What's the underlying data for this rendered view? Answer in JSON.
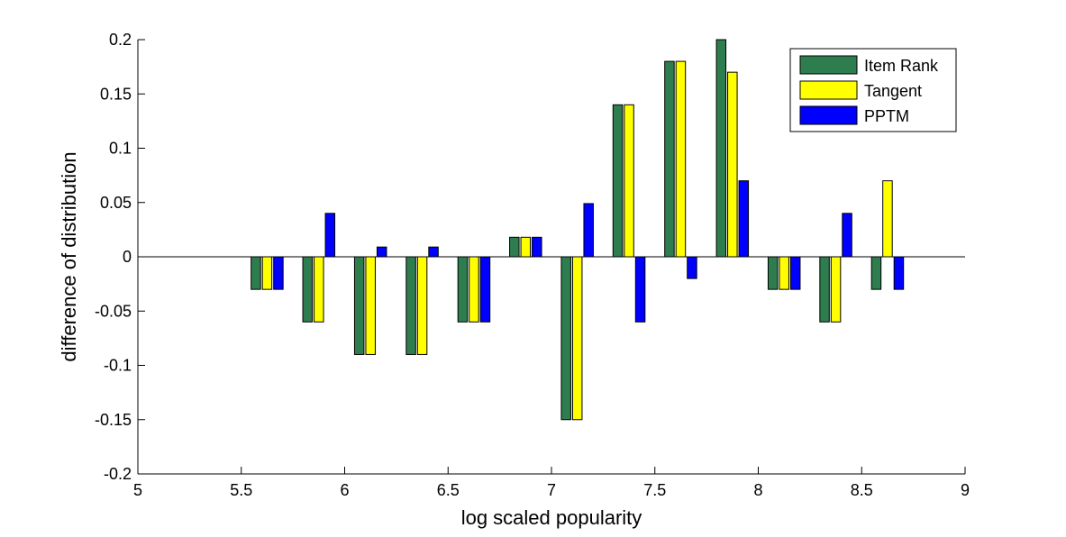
{
  "chart_data": {
    "type": "bar",
    "xlabel": "log scaled popularity",
    "ylabel": "difference of distribution",
    "xlim": [
      5,
      9
    ],
    "ylim": [
      -0.2,
      0.2
    ],
    "x_ticks": [
      5,
      5.5,
      6,
      6.5,
      7,
      7.5,
      8,
      8.5,
      9
    ],
    "x_tick_labels": [
      "5",
      "5.5",
      "6",
      "6.5",
      "7",
      "7.5",
      "8",
      "8.5",
      "9"
    ],
    "y_ticks": [
      -0.2,
      -0.15,
      -0.1,
      -0.05,
      0,
      0.05,
      0.1,
      0.15,
      0.2
    ],
    "y_tick_labels": [
      "-0.2",
      "-0.15",
      "-0.1",
      "-0.05",
      "0",
      "0.05",
      "0.1",
      "0.15",
      "0.2"
    ],
    "x": [
      5.625,
      5.875,
      6.125,
      6.375,
      6.625,
      6.875,
      7.125,
      7.375,
      7.625,
      7.875,
      8.125,
      8.375,
      8.625
    ],
    "series": [
      {
        "name": "Item Rank",
        "color": "#2e7d4f",
        "values": [
          -0.03,
          -0.06,
          -0.09,
          -0.09,
          -0.06,
          0.018,
          -0.15,
          0.14,
          0.18,
          0.2,
          -0.03,
          -0.06,
          -0.03
        ]
      },
      {
        "name": "Tangent",
        "color": "#ffff00",
        "values": [
          -0.03,
          -0.06,
          -0.09,
          -0.09,
          -0.06,
          0.018,
          -0.15,
          0.14,
          0.18,
          0.17,
          -0.03,
          -0.06,
          0.07
        ]
      },
      {
        "name": "PPTM",
        "color": "#0000ff",
        "values": [
          -0.03,
          0.04,
          0.009,
          0.009,
          -0.06,
          0.018,
          0.049,
          -0.06,
          -0.02,
          0.07,
          -0.03,
          0.04,
          -0.03
        ]
      }
    ],
    "legend_position": "top-right",
    "grid": false
  }
}
